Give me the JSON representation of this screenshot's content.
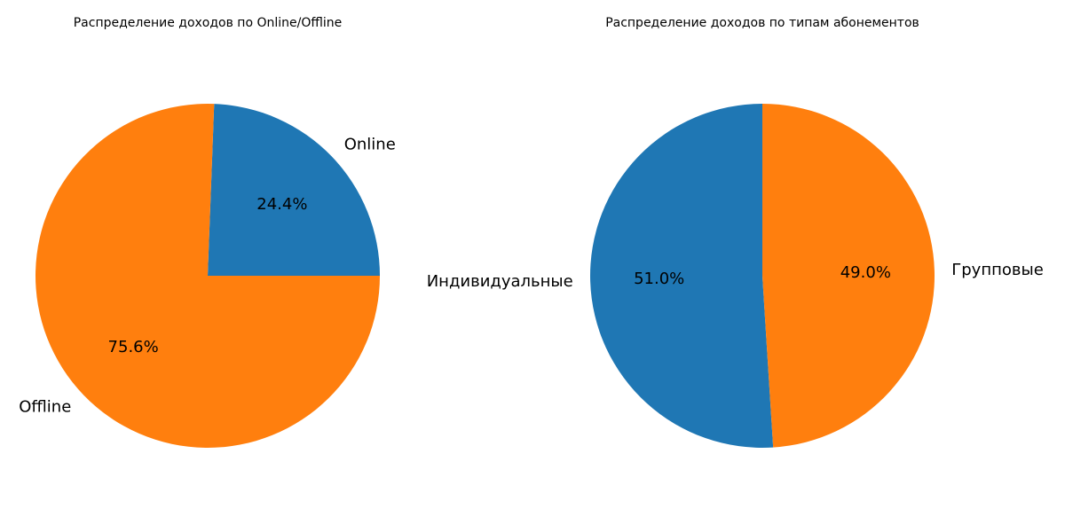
{
  "chart_data": [
    {
      "type": "pie",
      "title": "Распределение доходов по Online/Offline",
      "categories": [
        "Online",
        "Offline"
      ],
      "values": [
        24.4,
        75.6
      ],
      "value_labels": [
        "24.4%",
        "75.6%"
      ],
      "colors": [
        "#1f77b4",
        "#ff7f0e"
      ]
    },
    {
      "type": "pie",
      "title": "Распределение доходов по типам абонементов",
      "categories": [
        "Индивидуальные",
        "Групповые"
      ],
      "values": [
        51.0,
        49.0
      ],
      "value_labels": [
        "51.0%",
        "49.0%"
      ],
      "colors": [
        "#1f77b4",
        "#ff7f0e"
      ]
    }
  ]
}
